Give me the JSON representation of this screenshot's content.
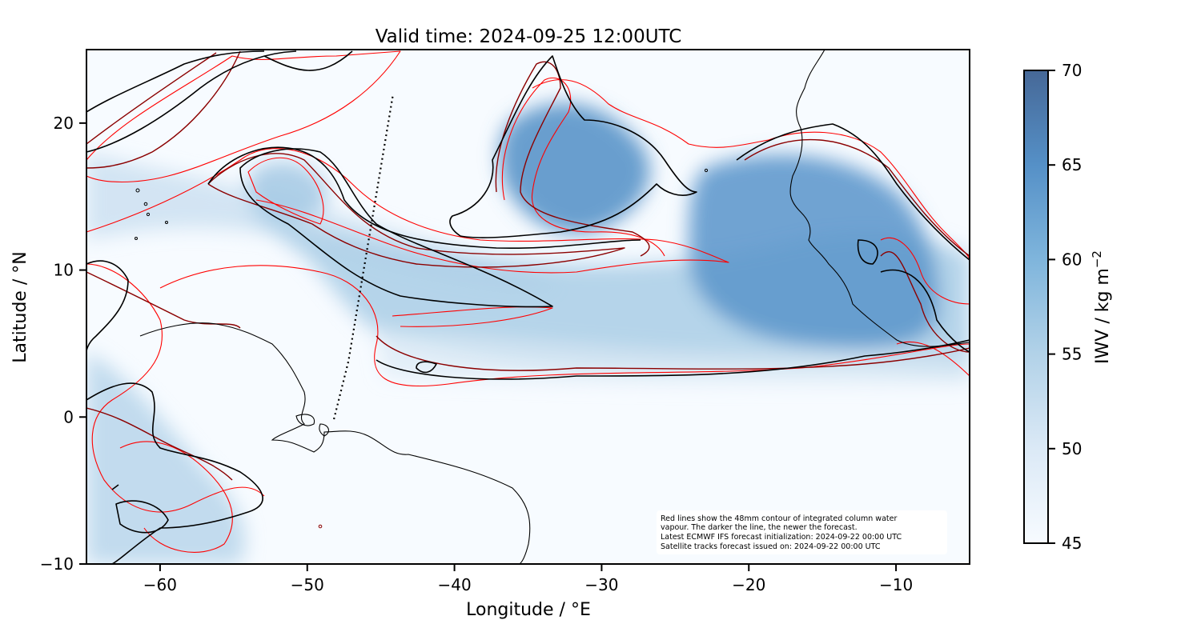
{
  "chart_data": {
    "type": "heatmap",
    "title": "Valid time: 2024-09-25 12:00UTC",
    "xlabel": "Longitude / °E",
    "ylabel": "Latitude / °N",
    "xlim": [
      -65,
      -5
    ],
    "ylim": [
      -10,
      25
    ],
    "xticks": [
      -60,
      -50,
      -40,
      -30,
      -20,
      -10
    ],
    "yticks": [
      -10,
      0,
      10,
      20
    ],
    "xtick_labels": [
      "−60",
      "−50",
      "−40",
      "−30",
      "−20",
      "−10"
    ],
    "ytick_labels": [
      "−10",
      "0",
      "10",
      "20"
    ],
    "grid": false,
    "colorbar": {
      "label": "IWV / kg m",
      "label_superscript": "−2",
      "range": [
        45,
        70
      ],
      "ticks": [
        45,
        50,
        55,
        60,
        65,
        70
      ],
      "tick_labels": [
        "45",
        "50",
        "55",
        "60",
        "65",
        "70"
      ],
      "color_low": "#f7fbff",
      "color_high": "#466897"
    },
    "contour_colors": {
      "older": "#ff0000",
      "middle": "#8b0000",
      "newest": "#000000"
    },
    "satellite_track": {
      "lon": [
        -44.2,
        -45.2,
        -46.2,
        -47.2,
        -48.2
      ],
      "lat": [
        21.8,
        15.8,
        9.8,
        3.8,
        -0.2
      ]
    },
    "annotation": [
      "Red lines show the 48mm contour of integrated column water",
      "vapour. The darker the line, the newer the forecast.",
      "Latest ECMWF IFS forecast initialization: 2024-09-22 00:00 UTC",
      "Satellite tracks forecast issued on: 2024-09-22 00:00 UTC"
    ]
  }
}
